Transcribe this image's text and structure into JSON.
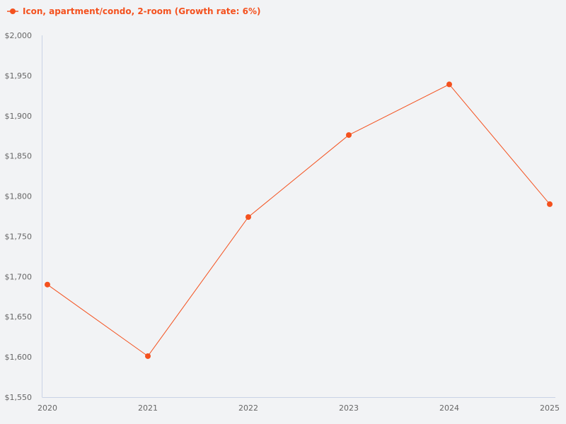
{
  "legend": {
    "label": "Icon, apartment/condo, 2-room (Growth rate: 6%)",
    "color": "#f4511e"
  },
  "chart_data": {
    "type": "line",
    "title": "",
    "xlabel": "",
    "ylabel": "",
    "categories": [
      "2020",
      "2021",
      "2022",
      "2023",
      "2024",
      "2025"
    ],
    "series": [
      {
        "name": "Icon, apartment/condo, 2-room (Growth rate: 6%)",
        "color": "#f4511e",
        "values": [
          1690,
          1601,
          1774,
          1876,
          1939,
          1790
        ]
      }
    ],
    "ylim": [
      1550,
      2000
    ],
    "yticks": [
      "$1,550",
      "$1,600",
      "$1,650",
      "$1,700",
      "$1,750",
      "$1,800",
      "$1,850",
      "$1,900",
      "$1,950",
      "$2,000"
    ],
    "grid": false,
    "legend_position": "top-left"
  }
}
